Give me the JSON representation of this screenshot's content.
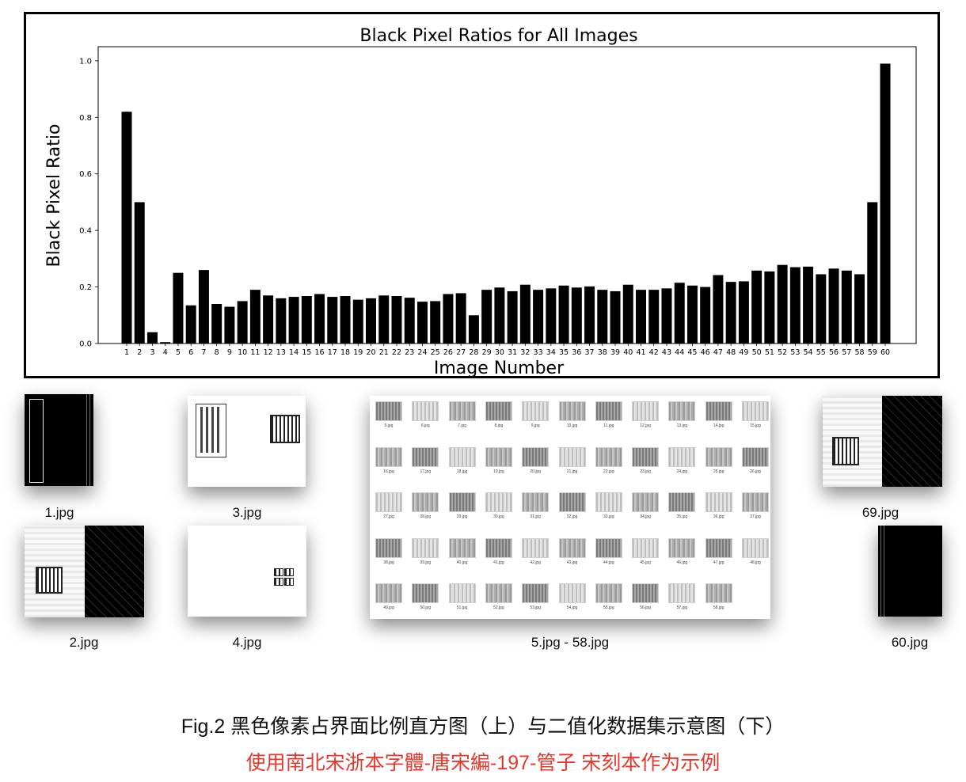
{
  "chart_data": {
    "type": "bar",
    "title": "Black Pixel Ratios for All Images",
    "xlabel": "Image Number",
    "ylabel": "Black Pixel Ratio",
    "ylim": [
      0,
      1.05
    ],
    "yticks": [
      "0.0",
      "0.2",
      "0.4",
      "0.6",
      "0.8",
      "1.0"
    ],
    "ytick_values": [
      0,
      0.2,
      0.4,
      0.6,
      0.8,
      1.0
    ],
    "categories": [
      "1",
      "2",
      "3",
      "4",
      "5",
      "6",
      "7",
      "8",
      "9",
      "10",
      "11",
      "12",
      "13",
      "14",
      "15",
      "16",
      "17",
      "18",
      "19",
      "20",
      "21",
      "22",
      "23",
      "24",
      "25",
      "26",
      "27",
      "28",
      "29",
      "30",
      "31",
      "32",
      "33",
      "34",
      "35",
      "36",
      "37",
      "38",
      "39",
      "40",
      "41",
      "42",
      "43",
      "44",
      "45",
      "46",
      "47",
      "48",
      "49",
      "50",
      "51",
      "52",
      "53",
      "54",
      "55",
      "56",
      "57",
      "58",
      "59",
      "60"
    ],
    "values": [
      0.82,
      0.5,
      0.04,
      0.005,
      0.25,
      0.135,
      0.26,
      0.14,
      0.13,
      0.15,
      0.19,
      0.17,
      0.16,
      0.165,
      0.168,
      0.175,
      0.165,
      0.168,
      0.155,
      0.16,
      0.17,
      0.168,
      0.162,
      0.148,
      0.15,
      0.175,
      0.178,
      0.1,
      0.19,
      0.198,
      0.185,
      0.208,
      0.19,
      0.195,
      0.205,
      0.198,
      0.202,
      0.19,
      0.185,
      0.208,
      0.19,
      0.19,
      0.195,
      0.215,
      0.205,
      0.2,
      0.242,
      0.218,
      0.22,
      0.258,
      0.255,
      0.278,
      0.27,
      0.272,
      0.245,
      0.265,
      0.258,
      0.245,
      0.5,
      0.99
    ],
    "grid": false,
    "bar_color": "#000000"
  },
  "thumbnails": {
    "t1": "1.jpg",
    "t2": "2.jpg",
    "t3": "3.jpg",
    "t4": "4.jpg",
    "gallery": "5.jpg - 58.jpg",
    "t69": "69.jpg",
    "t60": "60.jpg"
  },
  "gallery_items": [
    "5.jpg",
    "6.jpg",
    "7.jpg",
    "8.jpg",
    "9.jpg",
    "10.jpg",
    "11.jpg",
    "12.jpg",
    "13.jpg",
    "14.jpg",
    "15.jpg",
    "16.jpg",
    "17.jpg",
    "18.jpg",
    "19.jpg",
    "20.jpg",
    "21.jpg",
    "22.jpg",
    "23.jpg",
    "24.jpg",
    "25.jpg",
    "26.jpg",
    "27.jpg",
    "28.jpg",
    "29.jpg",
    "30.jpg",
    "31.jpg",
    "32.jpg",
    "33.jpg",
    "34.jpg",
    "35.jpg",
    "36.jpg",
    "37.jpg",
    "38.jpg",
    "39.jpg",
    "40.jpg",
    "41.jpg",
    "42.jpg",
    "43.jpg",
    "44.jpg",
    "45.jpg",
    "46.jpg",
    "47.jpg",
    "48.jpg",
    "49.jpg",
    "50.jpg",
    "51.jpg",
    "52.jpg",
    "53.jpg",
    "54.jpg",
    "55.jpg",
    "56.jpg",
    "57.jpg",
    "58.jpg"
  ],
  "caption": "Fig.2 黑色像素占界面比例直方图（上）与二值化数据集示意图（下）",
  "subcaption": "使用南北宋浙本字體-唐宋編-197-管子 宋刻本作为示例",
  "colors": {
    "subcaption": "#e8372c",
    "ink": "#000000"
  }
}
